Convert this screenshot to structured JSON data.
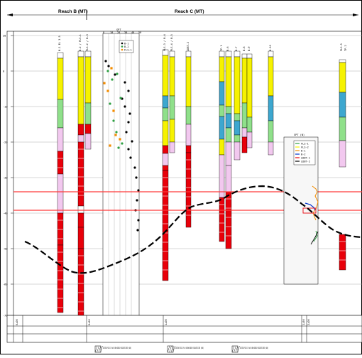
{
  "header": {
    "reach_b": "Reach B (MT)",
    "reach_c": "Reach C (MT)"
  },
  "axis": {
    "left_ticks": [
      "20",
      "0",
      "-10",
      "-20",
      "-30",
      "-40",
      "-50",
      "-60",
      "-70",
      "-80"
    ]
  },
  "spt_panel": {
    "title": "SPT",
    "legend": [
      "B-1",
      "B-2",
      "FLS-1"
    ],
    "scale": [
      "0",
      "10",
      "20",
      "30",
      "40",
      "50"
    ]
  },
  "right_panel": {
    "title": "SPT (N)",
    "legend": [
      "FLS-1",
      "FLS-2",
      "B-1",
      "B-2",
      "LDBT-1",
      "LDBT-2"
    ]
  },
  "boring_labels": [
    "B-1 EL 3.5",
    "B-2 / FLS-1",
    "FLS-2 / B-3",
    "FLS-3 / B-4",
    "FLS-4 / B-5",
    "LDBT-2",
    "TP-1",
    "B-6",
    "B-7",
    "B-8",
    "B-9",
    "B-10",
    "FLS-5",
    "TP-2"
  ],
  "bottom_labels": {
    "existing_piles": "EXISTING PILES OF LW ON ROW WIDENLY EXCAVATED INTO (HAVE)",
    "stations": [
      "0+00",
      "0+50",
      "1+00",
      "1+50",
      "2+00"
    ]
  },
  "colors": {
    "fill_red": "#e8000a",
    "fill_yellow": "#f6f200",
    "fill_green": "#8fe08a",
    "fill_blue": "#3da7cf",
    "fill_pink": "#f2c8ef",
    "line_red": "#ff3b3b",
    "line_black": "#000000"
  }
}
